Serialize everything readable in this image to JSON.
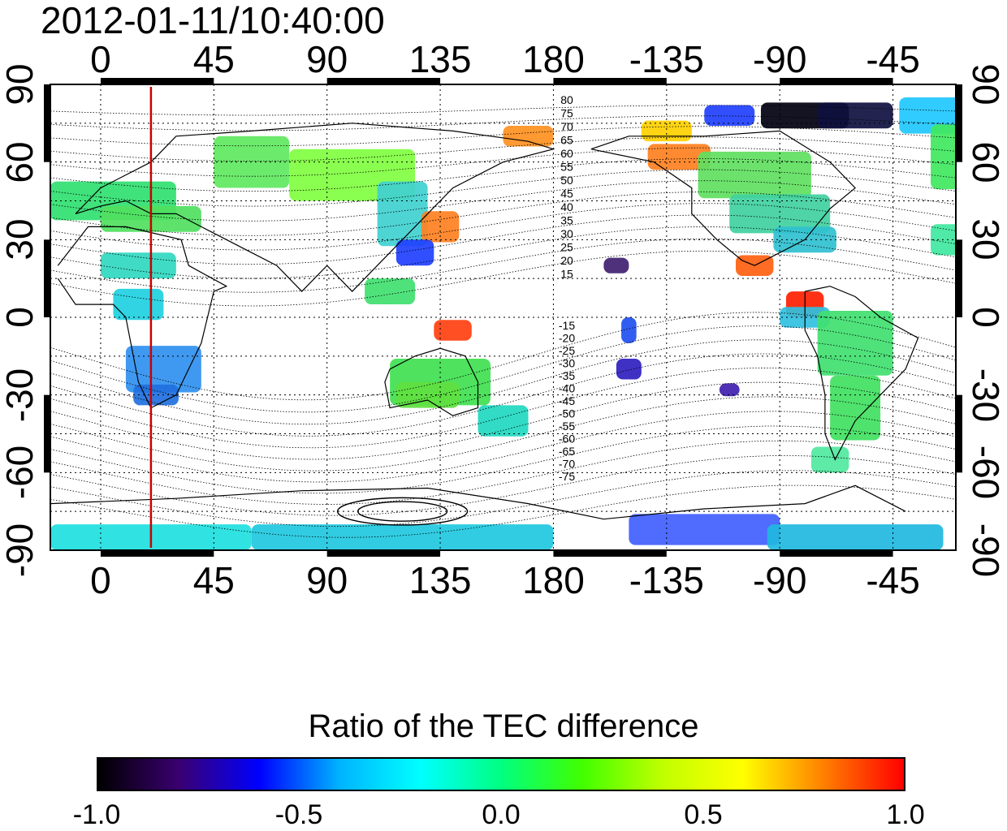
{
  "timestamp": "2012-01-11/10:40:00",
  "map": {
    "lon_labels_top": [
      "0",
      "45",
      "90",
      "135",
      "180",
      "-135",
      "-90",
      "-45"
    ],
    "lon_labels_bottom": [
      "0",
      "45",
      "90",
      "135",
      "180",
      "-135",
      "-90",
      "-45"
    ],
    "lat_labels_left": [
      "90",
      "60",
      "30",
      "0",
      "-30",
      "-60",
      "-90"
    ],
    "lat_labels_right": [
      "90",
      "60",
      "30",
      "0",
      "-30",
      "-60",
      "-90"
    ],
    "contour_labels_north": [
      "80",
      "75",
      "70",
      "65",
      "60",
      "55",
      "50",
      "45",
      "40",
      "35",
      "30",
      "25",
      "20",
      "15"
    ],
    "contour_labels_south": [
      "-15",
      "-20",
      "-25",
      "-30",
      "-35",
      "-40",
      "-45",
      "-50",
      "-55",
      "-60",
      "-65",
      "-70",
      "-75"
    ],
    "marker_line_color": "#cc0000",
    "marker_longitude": 20
  },
  "colorbar": {
    "title": "Ratio of the TEC difference",
    "tick_labels": [
      "-1.0",
      "-0.5",
      "0.0",
      "0.5",
      "1.0"
    ],
    "range": [
      -1.0,
      1.0
    ],
    "colors": [
      "#000000",
      "#3a0070",
      "#0000ff",
      "#00b4ff",
      "#00ffff",
      "#00ff80",
      "#40ff00",
      "#c0ff00",
      "#ffff00",
      "#ff8000",
      "#ff0000"
    ]
  }
}
